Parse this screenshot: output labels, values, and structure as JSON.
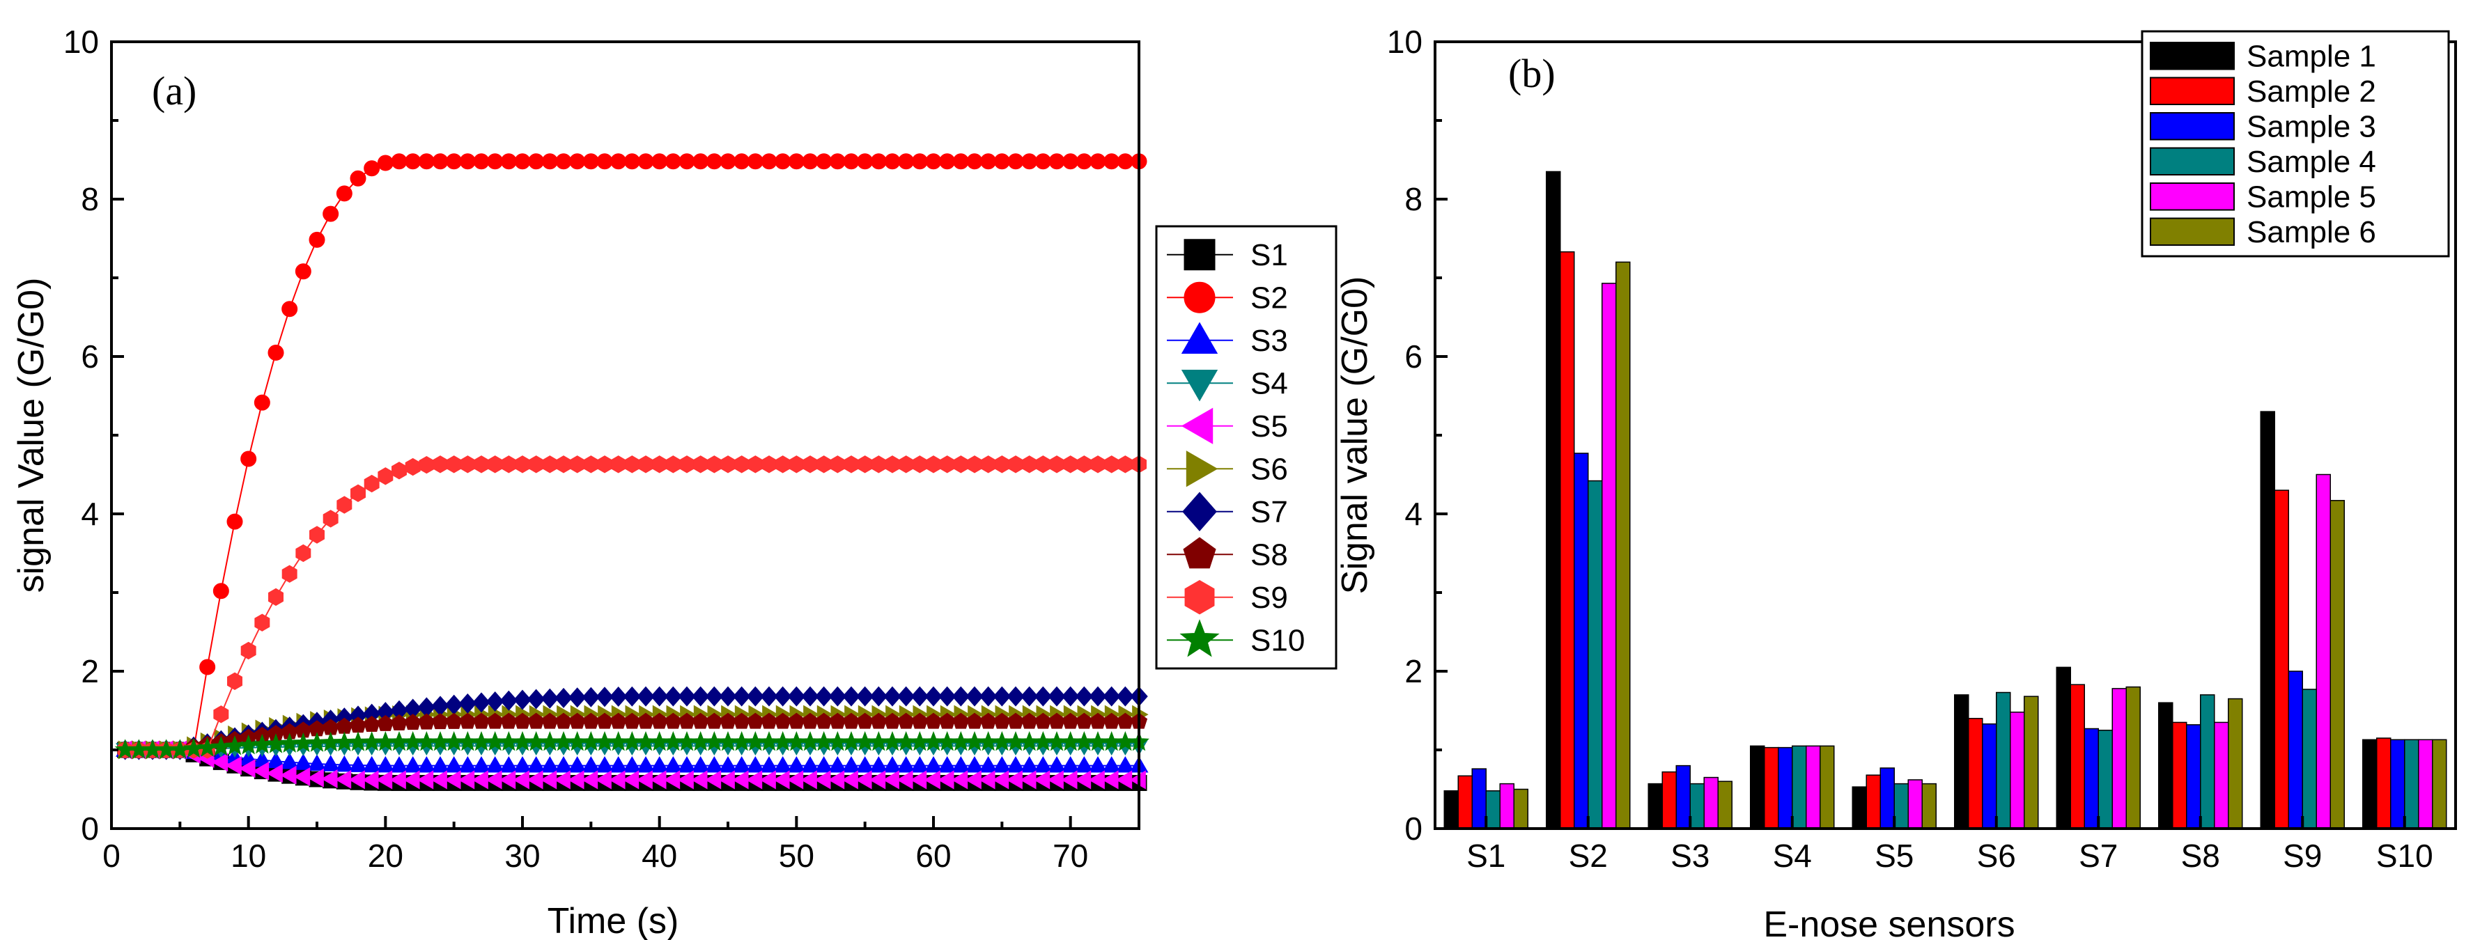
{
  "chart_data": [
    {
      "type": "scatter",
      "panel_label": "(a)",
      "title": "",
      "xlabel": "Time (s)",
      "ylabel": "signal Value (G/G0)",
      "xlim": [
        0,
        75
      ],
      "ylim": [
        0,
        10
      ],
      "xticks": [
        0,
        10,
        20,
        30,
        40,
        50,
        60,
        70
      ],
      "yticks": [
        0,
        2,
        4,
        6,
        8,
        10
      ],
      "legend_position": "right",
      "time_step": 1,
      "series": [
        {
          "name": "S1",
          "marker": "square",
          "color": "#000000",
          "start": 1.0,
          "onset": 5,
          "end": 0.58,
          "rise": 16
        },
        {
          "name": "S2",
          "marker": "circle",
          "color": "#ff0000",
          "start": 1.0,
          "onset": 6,
          "end": 8.48,
          "rise": 15
        },
        {
          "name": "S3",
          "marker": "triangle-up",
          "color": "#0000ff",
          "start": 1.0,
          "onset": 5,
          "end": 0.8,
          "rise": 16
        },
        {
          "name": "S4",
          "marker": "triangle-down",
          "color": "#008080",
          "start": 1.0,
          "onset": 5,
          "end": 1.05,
          "rise": 16
        },
        {
          "name": "S5",
          "marker": "triangle-left",
          "color": "#ff00ff",
          "start": 1.0,
          "onset": 5,
          "end": 0.62,
          "rise": 14
        },
        {
          "name": "S6",
          "marker": "triangle-right",
          "color": "#808000",
          "start": 1.0,
          "onset": 5,
          "end": 1.45,
          "rise": 18
        },
        {
          "name": "S7",
          "marker": "diamond",
          "color": "#000080",
          "start": 1.0,
          "onset": 5,
          "end": 1.68,
          "rise": 35
        },
        {
          "name": "S8",
          "marker": "pentagon",
          "color": "#800000",
          "start": 1.0,
          "onset": 5,
          "end": 1.36,
          "rise": 22
        },
        {
          "name": "S9",
          "marker": "hexagon",
          "color": "#ff3333",
          "start": 1.0,
          "onset": 7,
          "end": 4.63,
          "rise": 17
        },
        {
          "name": "S10",
          "marker": "star",
          "color": "#008000",
          "start": 1.0,
          "onset": 5,
          "end": 1.1,
          "rise": 16
        }
      ]
    },
    {
      "type": "bar",
      "panel_label": "(b)",
      "title": "",
      "xlabel": "E-nose sensors",
      "ylabel": "Signal value (G/G0)",
      "ylim": [
        0,
        10
      ],
      "yticks": [
        0,
        2,
        4,
        6,
        8,
        10
      ],
      "legend_position": "top-right",
      "categories": [
        "S1",
        "S2",
        "S3",
        "S4",
        "S5",
        "S6",
        "S7",
        "S8",
        "S9",
        "S10"
      ],
      "series": [
        {
          "name": "Sample 1",
          "color": "#000000",
          "values": [
            0.48,
            8.35,
            0.57,
            1.05,
            0.53,
            1.7,
            2.05,
            1.6,
            5.3,
            1.13
          ]
        },
        {
          "name": "Sample 2",
          "color": "#ff0000",
          "values": [
            0.67,
            7.33,
            0.72,
            1.03,
            0.68,
            1.4,
            1.83,
            1.35,
            4.3,
            1.15
          ]
        },
        {
          "name": "Sample 3",
          "color": "#0000ff",
          "values": [
            0.76,
            4.77,
            0.8,
            1.03,
            0.77,
            1.33,
            1.27,
            1.32,
            2.0,
            1.13
          ]
        },
        {
          "name": "Sample 4",
          "color": "#008080",
          "values": [
            0.48,
            4.42,
            0.57,
            1.05,
            0.57,
            1.73,
            1.25,
            1.7,
            1.77,
            1.13
          ]
        },
        {
          "name": "Sample 5",
          "color": "#ff00ff",
          "values": [
            0.57,
            6.93,
            0.65,
            1.05,
            0.62,
            1.48,
            1.78,
            1.35,
            4.5,
            1.13
          ]
        },
        {
          "name": "Sample 6",
          "color": "#808000",
          "values": [
            0.5,
            7.2,
            0.6,
            1.05,
            0.57,
            1.68,
            1.8,
            1.65,
            4.17,
            1.13
          ]
        }
      ]
    }
  ]
}
